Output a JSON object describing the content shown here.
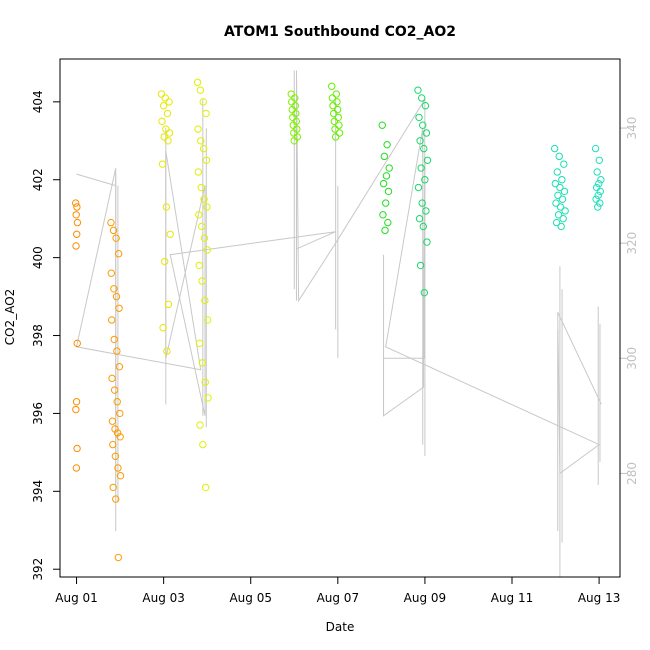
{
  "chart_data": {
    "type": "scatter",
    "title": "ATOM1 Southbound CO2_AO2",
    "xlabel": "Date",
    "ylabel": "CO2_AO2",
    "x_ticks": [
      "Aug 01",
      "Aug 03",
      "Aug 05",
      "Aug 07",
      "Aug 09",
      "Aug 11",
      "Aug 13"
    ],
    "x_tick_days": [
      1,
      3,
      5,
      7,
      9,
      11,
      13
    ],
    "xlim_days": [
      0.62,
      13.48
    ],
    "y_ticks": [
      392,
      394,
      396,
      398,
      400,
      402,
      404
    ],
    "ylim": [
      391.8,
      405.1
    ],
    "y2_ticks": [
      280,
      300,
      320,
      340
    ],
    "y2lim": [
      262,
      352
    ],
    "grid": false,
    "points_series": [
      {
        "day": 1.0,
        "color": "#ff8c00",
        "x_spread": 0.02,
        "values": [
          401.4,
          401.3,
          401.1,
          400.9,
          400.6,
          400.3,
          397.8,
          396.3,
          396.1,
          395.1,
          394.6
        ]
      },
      {
        "day": 1.9,
        "color": "#ff9a00",
        "x_spread": 0.11,
        "values": [
          400.9,
          400.7,
          400.5,
          400.1,
          399.6,
          399.2,
          399.0,
          398.7,
          398.4,
          397.9,
          397.6,
          397.2,
          396.9,
          396.6,
          396.3,
          396.0,
          395.8,
          395.6,
          395.5,
          395.4,
          395.2,
          394.9,
          394.6,
          394.4,
          394.1,
          393.8,
          392.3
        ]
      },
      {
        "day": 3.05,
        "color": "#e8e800",
        "x_spread": 0.1,
        "values": [
          404.2,
          404.1,
          404.0,
          403.9,
          403.7,
          403.5,
          403.3,
          403.2,
          403.1,
          403.0,
          402.4,
          401.3,
          400.6,
          399.9,
          398.8,
          398.2,
          397.6
        ]
      },
      {
        "day": 3.9,
        "color": "#e0f000",
        "x_spread": 0.12,
        "values": [
          404.5,
          404.3,
          404.0,
          403.7,
          403.3,
          403.0,
          402.8,
          402.5,
          402.2,
          401.8,
          401.5,
          401.3,
          401.1,
          400.8,
          400.5,
          400.2,
          399.8,
          399.4,
          398.9,
          398.4,
          397.8,
          397.3,
          396.8,
          396.4,
          395.7,
          395.2,
          394.1
        ]
      },
      {
        "day": 6.0,
        "color": "#7ff000",
        "x_spread": 0.07,
        "values": [
          404.2,
          404.1,
          404.0,
          403.9,
          403.8,
          403.7,
          403.6,
          403.5,
          403.4,
          403.3,
          403.2,
          403.1,
          403.0
        ]
      },
      {
        "day": 6.95,
        "color": "#66ee00",
        "x_spread": 0.09,
        "values": [
          404.4,
          404.2,
          404.1,
          404.0,
          403.9,
          403.8,
          403.7,
          403.6,
          403.5,
          403.4,
          403.3,
          403.2,
          403.1
        ]
      },
      {
        "day": 8.1,
        "color": "#22dd22",
        "x_spread": 0.08,
        "values": [
          403.4,
          402.9,
          402.6,
          402.3,
          402.1,
          401.9,
          401.7,
          401.4,
          401.1,
          400.9,
          400.7
        ]
      },
      {
        "day": 8.95,
        "color": "#1ad96a",
        "x_spread": 0.11,
        "values": [
          404.3,
          404.1,
          403.9,
          403.6,
          403.4,
          403.2,
          403.0,
          402.8,
          402.5,
          402.3,
          402.0,
          401.8,
          401.4,
          401.2,
          401.0,
          400.8,
          400.4,
          399.8,
          399.1
        ]
      },
      {
        "day": 12.1,
        "color": "#1ae0b0",
        "x_spread": 0.12,
        "values": [
          402.8,
          402.6,
          402.4,
          402.2,
          402.0,
          401.9,
          401.8,
          401.7,
          401.6,
          401.5,
          401.4,
          401.3,
          401.2,
          401.1,
          401.0,
          400.9,
          400.8
        ]
      },
      {
        "day": 12.98,
        "color": "#22e0bc",
        "x_spread": 0.06,
        "values": [
          402.8,
          402.5,
          402.2,
          402.0,
          401.9,
          401.8,
          401.7,
          401.6,
          401.5,
          401.4,
          401.3
        ]
      }
    ],
    "line_series": {
      "color": "#c8c8c8",
      "y_axis": "right",
      "points": [
        [
          1.0,
          332
        ],
        [
          1.9,
          330
        ],
        [
          1.9,
          278
        ],
        [
          1.9,
          333
        ],
        [
          1.0,
          302
        ],
        [
          3.85,
          298
        ],
        [
          3.05,
          336
        ],
        [
          3.05,
          300
        ],
        [
          3.95,
          330
        ],
        [
          3.95,
          290
        ],
        [
          3.15,
          318
        ],
        [
          6.95,
          322
        ],
        [
          6.05,
          319
        ],
        [
          6.05,
          350
        ],
        [
          6.1,
          310
        ],
        [
          6.95,
          320
        ],
        [
          9.0,
          345
        ],
        [
          8.98,
          300
        ],
        [
          8.05,
          300
        ],
        [
          8.05,
          290
        ],
        [
          8.97,
          295
        ],
        [
          8.95,
          340
        ],
        [
          8.1,
          302
        ],
        [
          13.0,
          285
        ],
        [
          12.1,
          280
        ],
        [
          12.05,
          308
        ],
        [
          13.05,
          292
        ]
      ],
      "spikes": [
        {
          "day": 1.9,
          "from": 270,
          "to": 332
        },
        {
          "day": 1.95,
          "from": 275,
          "to": 330
        },
        {
          "day": 3.05,
          "from": 292,
          "to": 340
        },
        {
          "day": 3.9,
          "from": 290,
          "to": 345
        },
        {
          "day": 3.98,
          "from": 288,
          "to": 340
        },
        {
          "day": 6.0,
          "from": 312,
          "to": 350
        },
        {
          "day": 6.05,
          "from": 310,
          "to": 345
        },
        {
          "day": 6.95,
          "from": 305,
          "to": 345
        },
        {
          "day": 7.0,
          "from": 300,
          "to": 330
        },
        {
          "day": 8.05,
          "from": 290,
          "to": 318
        },
        {
          "day": 8.95,
          "from": 285,
          "to": 340
        },
        {
          "day": 9.0,
          "from": 283,
          "to": 335
        },
        {
          "day": 12.05,
          "from": 270,
          "to": 305
        },
        {
          "day": 12.1,
          "from": 262,
          "to": 316
        },
        {
          "day": 12.15,
          "from": 268,
          "to": 312
        },
        {
          "day": 12.98,
          "from": 278,
          "to": 309
        },
        {
          "day": 13.02,
          "from": 282,
          "to": 306
        }
      ]
    }
  }
}
